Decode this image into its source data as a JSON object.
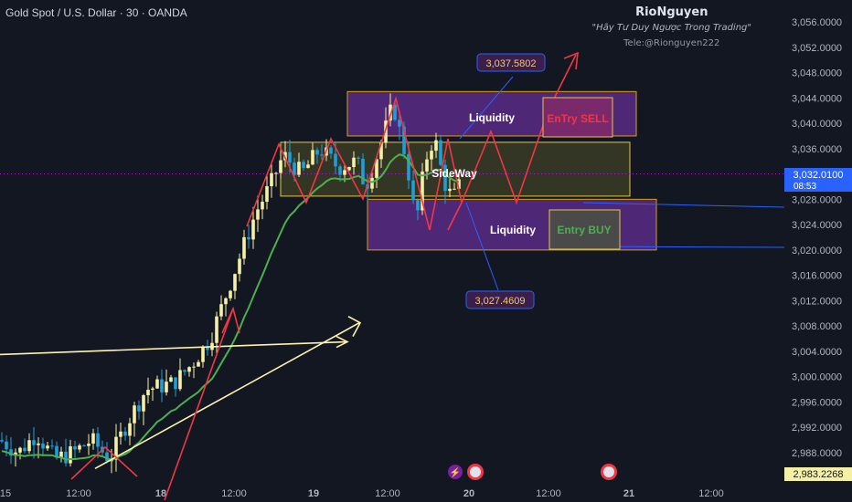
{
  "header": {
    "symbol_line": "Gold Spot / U.S. Dollar · 30 · OANDA"
  },
  "branding": {
    "name": "RioNguyen",
    "quote": "\"Hãy Tư Duy Ngược Trong Trading\"",
    "contact": "Tele:@Rionguyen222"
  },
  "chart_data": {
    "type": "candlestick",
    "ylim": [
      2983,
      3058
    ],
    "y_ticks": [
      "3,056.0000",
      "3,052.0000",
      "3,048.0000",
      "3,044.0000",
      "3,040.0000",
      "3,036.0000",
      "3,032.0000",
      "3,028.0000",
      "3,024.0000",
      "3,020.0000",
      "3,016.0000",
      "3,012.0000",
      "3,008.0000",
      "3,004.0000",
      "3,000.0000",
      "2,996.0000",
      "2,992.0000",
      "2,988.0000"
    ],
    "x_ticks": [
      "15",
      "12:00",
      "18",
      "12:00",
      "19",
      "12:00",
      "20",
      "12:00",
      "21",
      "12:00"
    ],
    "current_price": "3,032.0100",
    "countdown": "08:53",
    "low_price_tag": "2,983.2268",
    "annotations": {
      "liquidity_top": "Liquidity",
      "liquidity_bottom": "Liquidity",
      "sideway": "SideWay",
      "entry_sell": "EnTry SELL",
      "entry_buy": "Entry BUY",
      "target_high": "3,037.5802",
      "target_low": "3,027.4609"
    },
    "zones": {
      "liquidity_top": [
        3038,
        3045
      ],
      "sideway": [
        3028.5,
        3037
      ],
      "liquidity_bottom": [
        3020,
        3028
      ]
    },
    "colors": {
      "up": "#f5f0a4",
      "down": "#1f9fd6",
      "ma": "#4caf50",
      "zigzag": "#f23645",
      "liquidity": "#5b2a86",
      "sideway": "#5a5a2a",
      "accent": "#2962ff"
    }
  }
}
